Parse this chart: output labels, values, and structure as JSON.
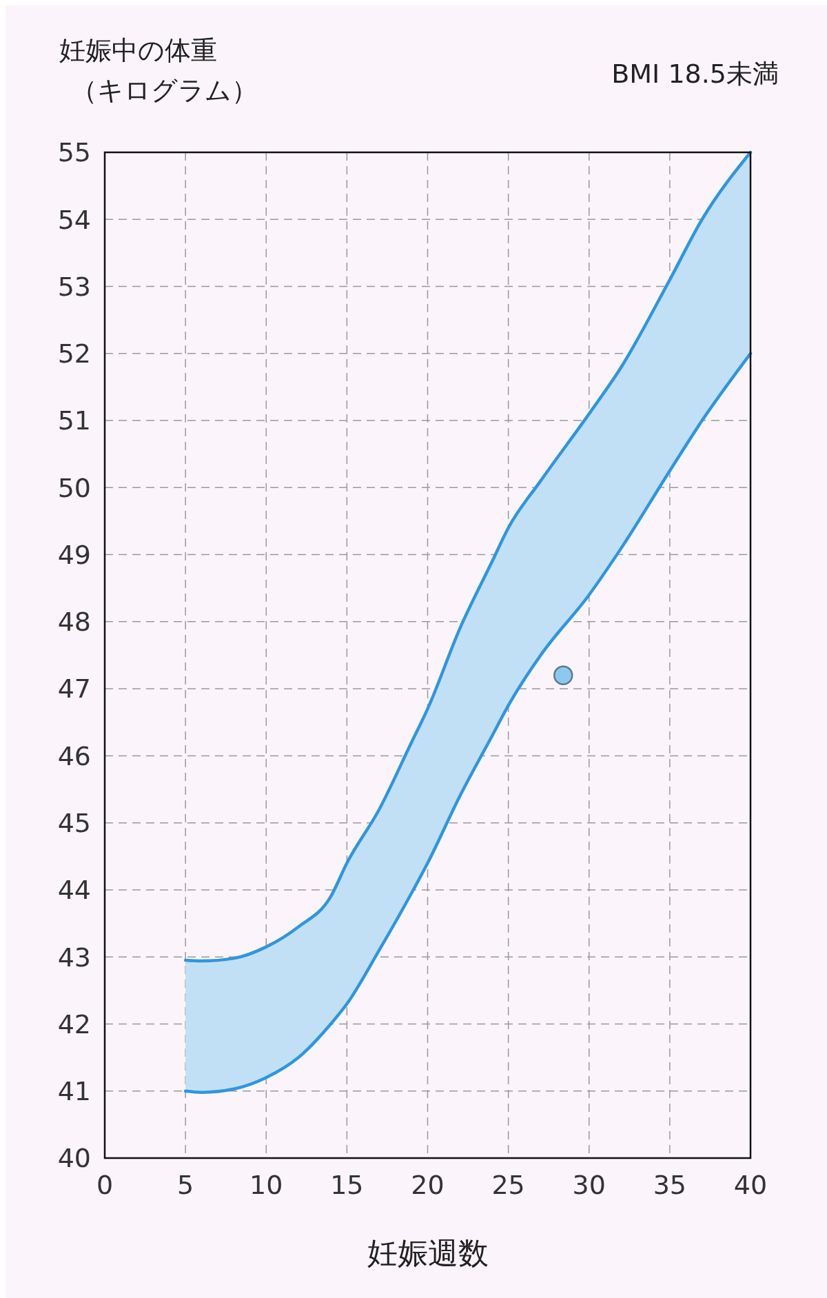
{
  "chart_data": {
    "type": "line",
    "title": "BMI 18.5未満",
    "ylabel": "妊娠中の体重（キログラム）",
    "xlabel": "妊娠週数",
    "x": [
      5,
      6,
      8,
      10,
      12,
      14,
      15,
      17,
      19,
      20,
      22,
      24,
      25,
      27,
      30,
      32,
      35,
      37,
      40
    ],
    "series": [
      {
        "color": "#2f96e0",
        "values": [
          42.95,
          42.94,
          42.98,
          43.15,
          43.45,
          43.9,
          44.4,
          45.2,
          46.2,
          46.7,
          47.9,
          48.9,
          49.4,
          50.1,
          51.1,
          51.8,
          53.1,
          54.0,
          55.0
        ],
        "lower": [
          41.0,
          40.98,
          41.03,
          41.2,
          41.5,
          42.0,
          42.3,
          43.1,
          43.95,
          44.4,
          45.4,
          46.3,
          46.75,
          47.5,
          48.4,
          49.1,
          50.25,
          51.0,
          52.0
        ],
        "upper": [
          42.95,
          42.94,
          42.98,
          43.15,
          43.45,
          43.9,
          44.4,
          45.2,
          46.2,
          46.7,
          47.9,
          48.9,
          49.4,
          50.1,
          51.1,
          51.8,
          53.1,
          54.0,
          55.0
        ]
      },
      {
        "color": "#2f96e0",
        "values": [
          41.0,
          40.98,
          41.03,
          41.2,
          41.5,
          42.0,
          42.3,
          43.1,
          43.95,
          44.4,
          45.4,
          46.3,
          46.75,
          47.5,
          48.4,
          49.1,
          50.25,
          51.0,
          52.0
        ]
      },
      {
        "type": "scatter",
        "color": "#8ec8f0",
        "x": [
          28.4
        ],
        "values": [
          47.2
        ],
        "marker": "circle"
      }
    ],
    "xlim": [
      0,
      40
    ],
    "xticks": [
      0,
      5,
      10,
      15,
      20,
      25,
      30,
      35,
      40
    ],
    "ylim": [
      40,
      55
    ],
    "yticks": [
      40,
      41,
      42,
      43,
      44,
      45,
      46,
      47,
      48,
      49,
      50,
      51,
      52,
      53,
      54,
      55
    ],
    "grid": true
  }
}
